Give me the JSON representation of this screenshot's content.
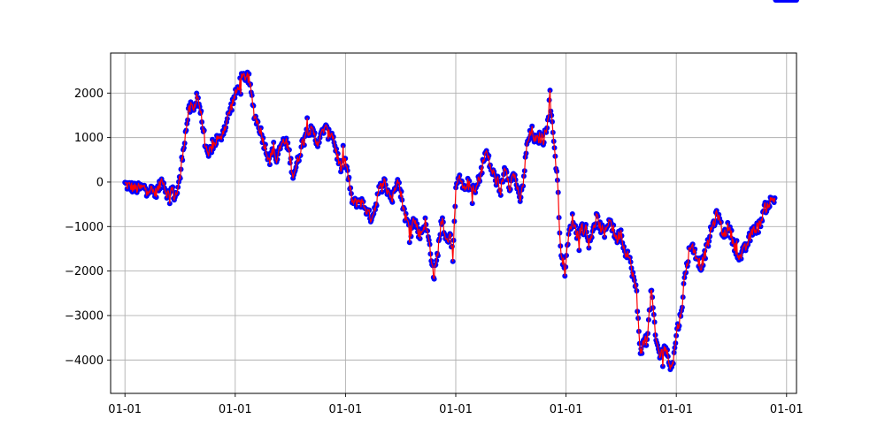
{
  "chart_data": {
    "type": "line",
    "title": "",
    "xlabel": "",
    "ylabel": "",
    "grid": true,
    "legend": "none",
    "colors": {
      "line": "#ff0000",
      "marker": "#0000ff"
    },
    "x_ticks": [
      "01-01",
      "01-01",
      "01-01",
      "01-01",
      "01-01",
      "01-01",
      "01-01"
    ],
    "y_ticks": [
      "2000",
      "1000",
      "0",
      "−1000",
      "−2000",
      "−3000",
      "−4000"
    ],
    "ylim": [
      -4750,
      2900
    ],
    "series": [
      {
        "keypoints_x": [
          0.0,
          0.2,
          0.4,
          0.55,
          0.63,
          0.68,
          0.74,
          0.8,
          0.85,
          0.9,
          0.95,
          1.0,
          1.05,
          1.1,
          1.15,
          1.2,
          1.25,
          1.3,
          1.35,
          1.38,
          1.43,
          1.5,
          1.55,
          1.6,
          1.68,
          1.72,
          1.77,
          1.82,
          1.9,
          1.97,
          2.05,
          2.1,
          2.2,
          2.25,
          2.35,
          2.45,
          2.55,
          2.63,
          2.7,
          2.75,
          2.85,
          2.95,
          3.05,
          3.12,
          3.2,
          3.3,
          3.42,
          3.48,
          3.55,
          3.62,
          3.7,
          3.75,
          3.85,
          3.92,
          4.0,
          4.05,
          4.1,
          4.15,
          4.25,
          4.35,
          4.45,
          4.5,
          4.55,
          4.6,
          4.7,
          4.78,
          4.85,
          4.9,
          4.95,
          4.98,
          5.02,
          5.08,
          5.15,
          5.25,
          5.35,
          5.45,
          5.55,
          5.6,
          5.65,
          5.75,
          5.8,
          5.85,
          5.9,
          5.95,
          6.0,
          6.05,
          6.15,
          6.2,
          6.25,
          6.35,
          6.45,
          6.55,
          6.65,
          6.72,
          6.8,
          6.9,
          6.98,
          7.05,
          7.1,
          7.15,
          7.2,
          7.3,
          7.38,
          7.45,
          7.52,
          7.6,
          7.68,
          7.7,
          7.75,
          7.78,
          7.8,
          7.85,
          7.88,
          7.92,
          7.98,
          8.05,
          8.12,
          8.2,
          8.3,
          8.4,
          8.5,
          8.55,
          8.62,
          8.7,
          8.78,
          8.85,
          8.92,
          9.0,
          9.05,
          9.12,
          9.2,
          9.28,
          9.3,
          9.35,
          9.42,
          9.48,
          9.55,
          9.62,
          9.7,
          9.8,
          9.88,
          9.95,
          10.0,
          10.08,
          10.15,
          10.2,
          10.25,
          10.35,
          10.45,
          10.55,
          10.65,
          10.75,
          10.85,
          10.95,
          11.05,
          11.15,
          11.25,
          11.35,
          11.42,
          11.5,
          11.6,
          11.7,
          11.8,
          11.85,
          11.95,
          12.05,
          12.15,
          12.18
        ],
        "keypoints_y": [
          -50,
          -150,
          -120,
          -250,
          -100,
          120,
          -200,
          -300,
          -150,
          -350,
          -200,
          100,
          700,
          1100,
          1550,
          1700,
          1600,
          2000,
          1750,
          1500,
          1100,
          500,
          750,
          800,
          1000,
          900,
          1150,
          1250,
          1600,
          1850,
          2100,
          2300,
          2400,
          2300,
          1500,
          1200,
          750,
          500,
          800,
          450,
          900,
          850,
          150,
          400,
          800,
          1200,
          1100,
          900,
          1000,
          1250,
          1050,
          1150,
          600,
          300,
          500,
          100,
          -300,
          -500,
          -400,
          -550,
          -800,
          -700,
          -500,
          -200,
          0,
          -200,
          -400,
          -100,
          200,
          -150,
          -350,
          -750,
          -1000,
          -850,
          -1200,
          -900,
          -1600,
          -2150,
          -1800,
          -800,
          -1100,
          -1400,
          -1000,
          -1800,
          -200,
          100,
          -200,
          0,
          -100,
          -250,
          200,
          700,
          250,
          100,
          -300,
          400,
          -100,
          200,
          0,
          -450,
          -250,
          900,
          1150,
          900,
          1000,
          950,
          1500,
          2100,
          1300,
          1000,
          500,
          100,
          -1200,
          -1600,
          -2000,
          -1200,
          -800,
          -1200,
          -1000,
          -1300,
          -1100,
          -800,
          -1000,
          -1200,
          -800,
          -1050,
          -1300,
          -1100,
          -1500,
          -1600,
          -2000,
          -2500,
          -3000,
          -3800,
          -3600,
          -3400,
          -2400,
          -3500,
          -3900,
          -3700,
          -4100,
          -4000,
          -3400,
          -3000,
          -2200,
          -1800,
          -1400,
          -1600,
          -1900,
          -1500,
          -1000,
          -700,
          -1200,
          -1000,
          -1400,
          -1700,
          -1500,
          -1200,
          -1050,
          -1000,
          -600,
          -450,
          -350
        ]
      }
    ]
  }
}
